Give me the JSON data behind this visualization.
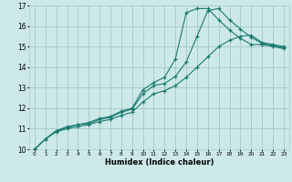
{
  "xlabel": "Humidex (Indice chaleur)",
  "background_color": "#cde8e8",
  "grid_color": "#aacccc",
  "line_color": "#1a7a6e",
  "xlim": [
    -0.5,
    23.5
  ],
  "ylim": [
    10,
    17
  ],
  "xticks": [
    0,
    1,
    2,
    3,
    4,
    5,
    6,
    7,
    8,
    9,
    10,
    11,
    12,
    13,
    14,
    15,
    16,
    17,
    18,
    19,
    20,
    21,
    22,
    23
  ],
  "yticks": [
    10,
    11,
    12,
    13,
    14,
    15,
    16,
    17
  ],
  "series": [
    {
      "x": [
        0,
        1,
        2,
        3,
        4,
        5,
        6,
        7,
        8,
        9,
        10,
        11,
        12,
        13,
        14,
        15,
        16,
        17,
        18,
        19,
        20,
        21,
        22,
        23
      ],
      "y": [
        10.0,
        10.5,
        10.9,
        11.1,
        11.2,
        11.3,
        11.5,
        11.6,
        11.85,
        12.0,
        12.9,
        13.25,
        13.5,
        14.4,
        16.65,
        16.85,
        16.85,
        16.3,
        15.8,
        15.4,
        15.1,
        15.1,
        15.0,
        14.9
      ]
    },
    {
      "x": [
        0,
        1,
        2,
        3,
        4,
        5,
        6,
        7,
        8,
        9,
        10,
        11,
        12,
        13,
        14,
        15,
        16,
        17,
        18,
        19,
        20,
        21,
        22,
        23
      ],
      "y": [
        10.0,
        10.5,
        10.9,
        11.05,
        11.2,
        11.25,
        11.45,
        11.55,
        11.8,
        11.95,
        12.7,
        13.1,
        13.2,
        13.55,
        14.25,
        15.5,
        16.75,
        16.85,
        16.3,
        15.85,
        15.45,
        15.15,
        15.05,
        14.95
      ]
    },
    {
      "x": [
        0,
        1,
        2,
        3,
        4,
        5,
        6,
        7,
        8,
        9,
        10,
        11,
        12,
        13,
        14,
        15,
        16,
        17,
        18,
        19,
        20,
        21,
        22,
        23
      ],
      "y": [
        10.0,
        10.5,
        10.85,
        11.0,
        11.1,
        11.2,
        11.35,
        11.45,
        11.65,
        11.8,
        12.3,
        12.7,
        12.85,
        13.1,
        13.5,
        14.0,
        14.5,
        15.0,
        15.3,
        15.5,
        15.55,
        15.2,
        15.1,
        15.0
      ]
    }
  ]
}
